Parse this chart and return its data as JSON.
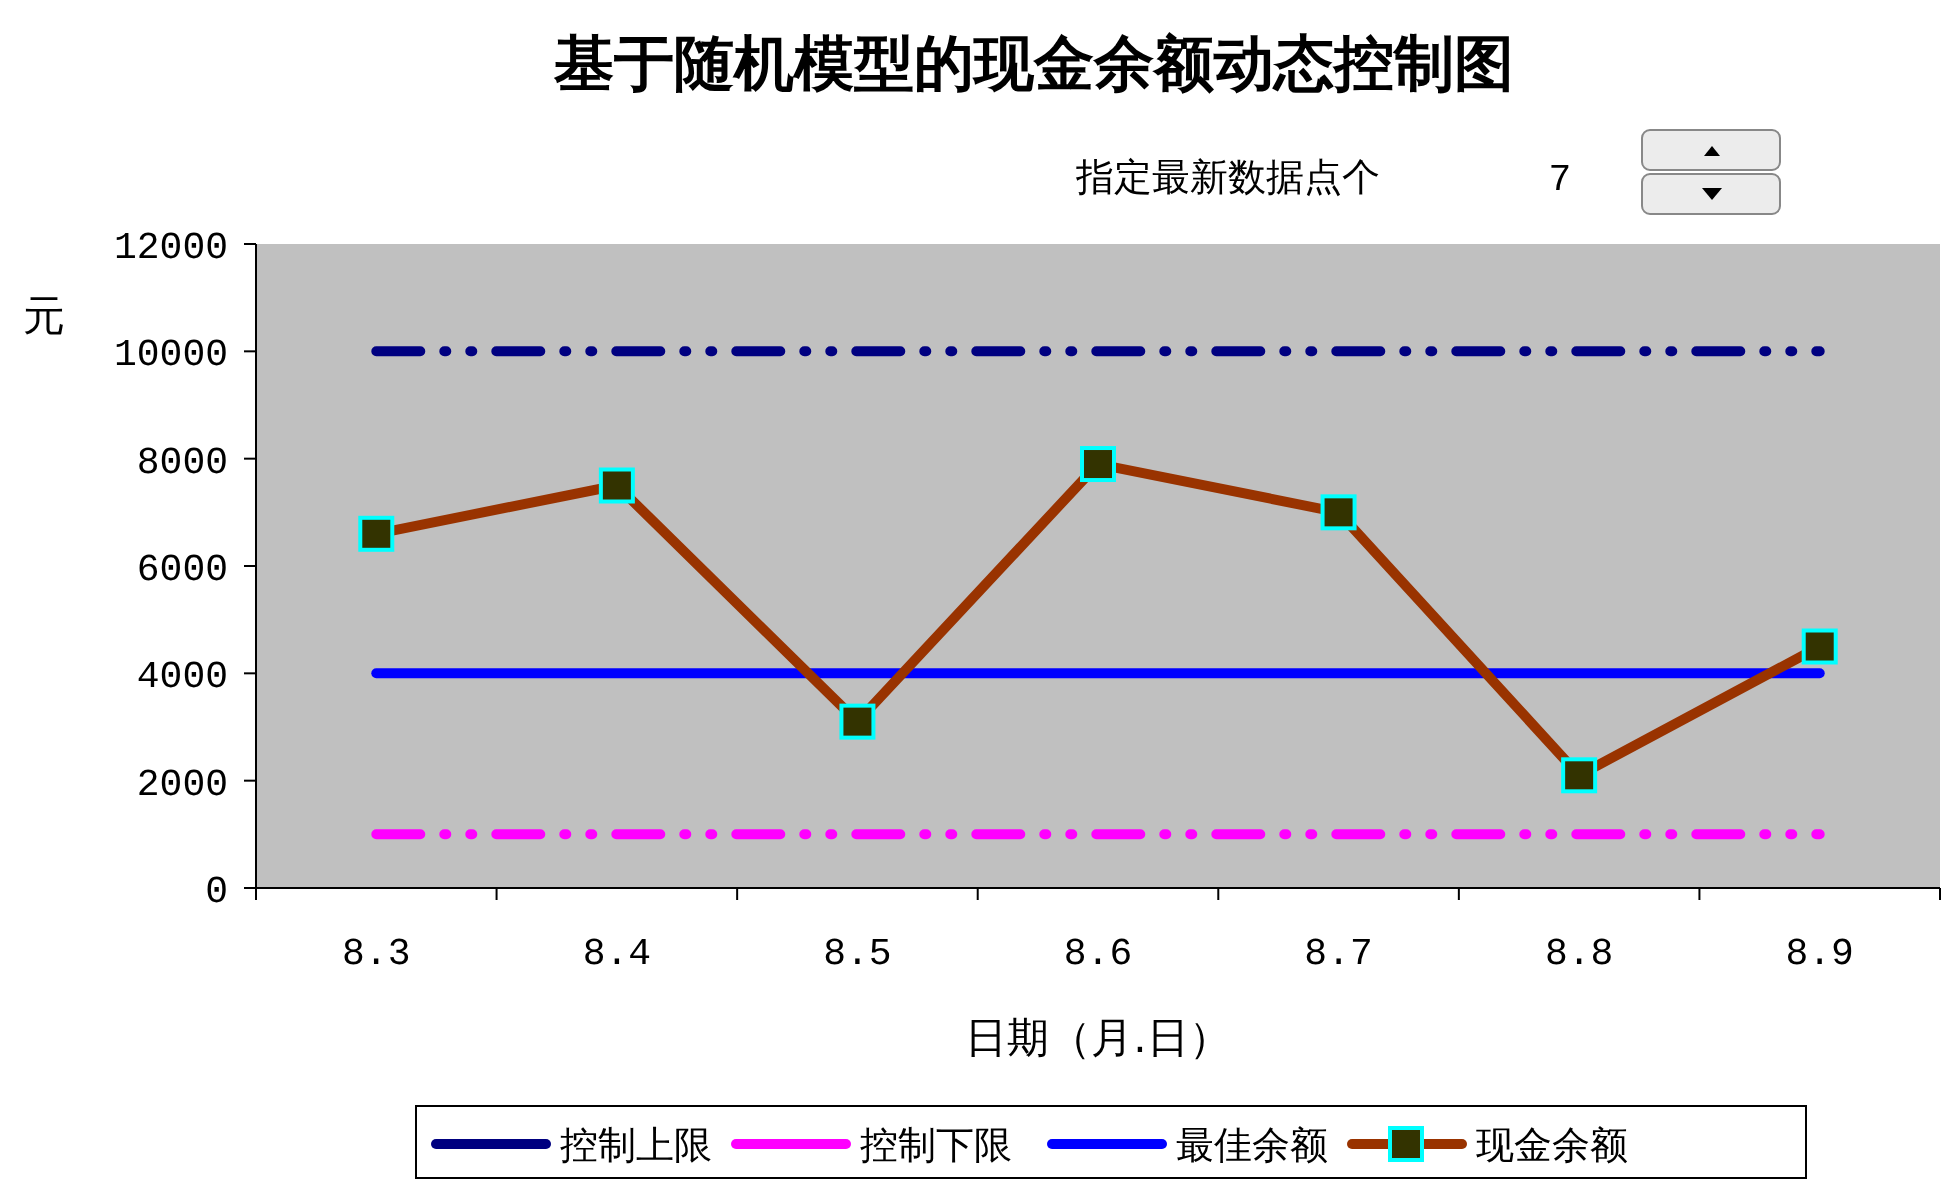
{
  "chart_data": {
    "type": "line",
    "title": "基于随机模型的现金余额动态控制图",
    "xlabel": "日期（月.日）",
    "ylabel": "元",
    "annotations": [
      "指定最新数据点个",
      "7"
    ],
    "categories": [
      "8.3",
      "8.4",
      "8.5",
      "8.6",
      "8.7",
      "8.8",
      "8.9"
    ],
    "series": [
      {
        "name": "控制上限",
        "color": "#000080",
        "line_style": "dashed",
        "marker": "none",
        "values": [
          10000,
          10000,
          10000,
          10000,
          10000,
          10000,
          10000
        ]
      },
      {
        "name": "控制下限",
        "color": "#ff00ff",
        "line_style": "dashed",
        "marker": "none",
        "values": [
          1000,
          1000,
          1000,
          1000,
          1000,
          1000,
          1000
        ]
      },
      {
        "name": "最佳余额",
        "color": "#0000ff",
        "line_style": "solid",
        "marker": "none",
        "values": [
          4000,
          4000,
          4000,
          4000,
          4000,
          4000,
          4000
        ]
      },
      {
        "name": "现金余额",
        "color": "#993300",
        "line_style": "solid",
        "marker": "square",
        "values": [
          6600,
          7500,
          3100,
          7900,
          7000,
          2100,
          4500
        ]
      }
    ],
    "ylim": [
      0,
      12000
    ],
    "yticks": [
      0,
      2000,
      4000,
      6000,
      8000,
      10000,
      12000
    ],
    "grid": false,
    "legend": "bottom"
  }
}
